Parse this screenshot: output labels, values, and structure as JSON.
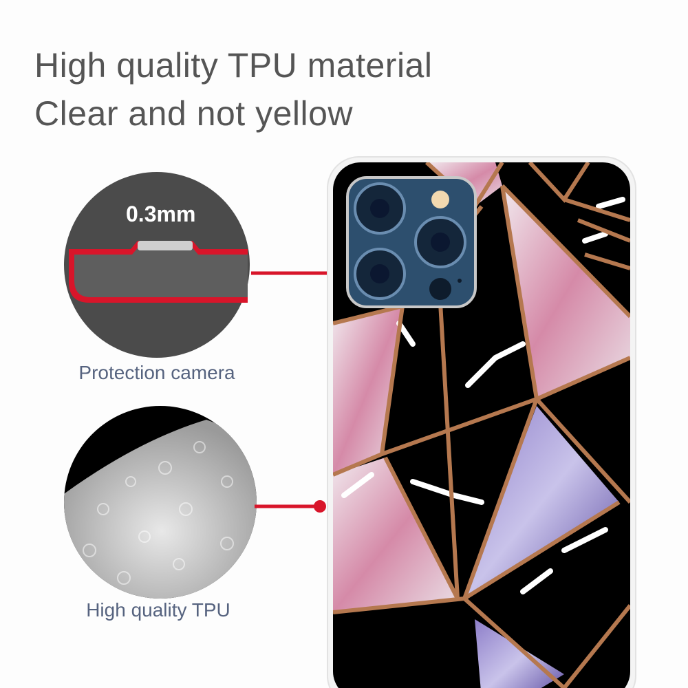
{
  "headline": {
    "line1": "High quality TPU material",
    "line2": "Clear and not yellow"
  },
  "callouts": [
    {
      "thickness": "0.3mm",
      "label": "Protection camera"
    },
    {
      "label": "High quality TPU"
    }
  ],
  "colors": {
    "callout_line": "#d8152a",
    "frame_copper": "#b5784f",
    "case_black": "#000000",
    "camera_blue": "#2d4f6e",
    "label_text": "#56637f"
  }
}
